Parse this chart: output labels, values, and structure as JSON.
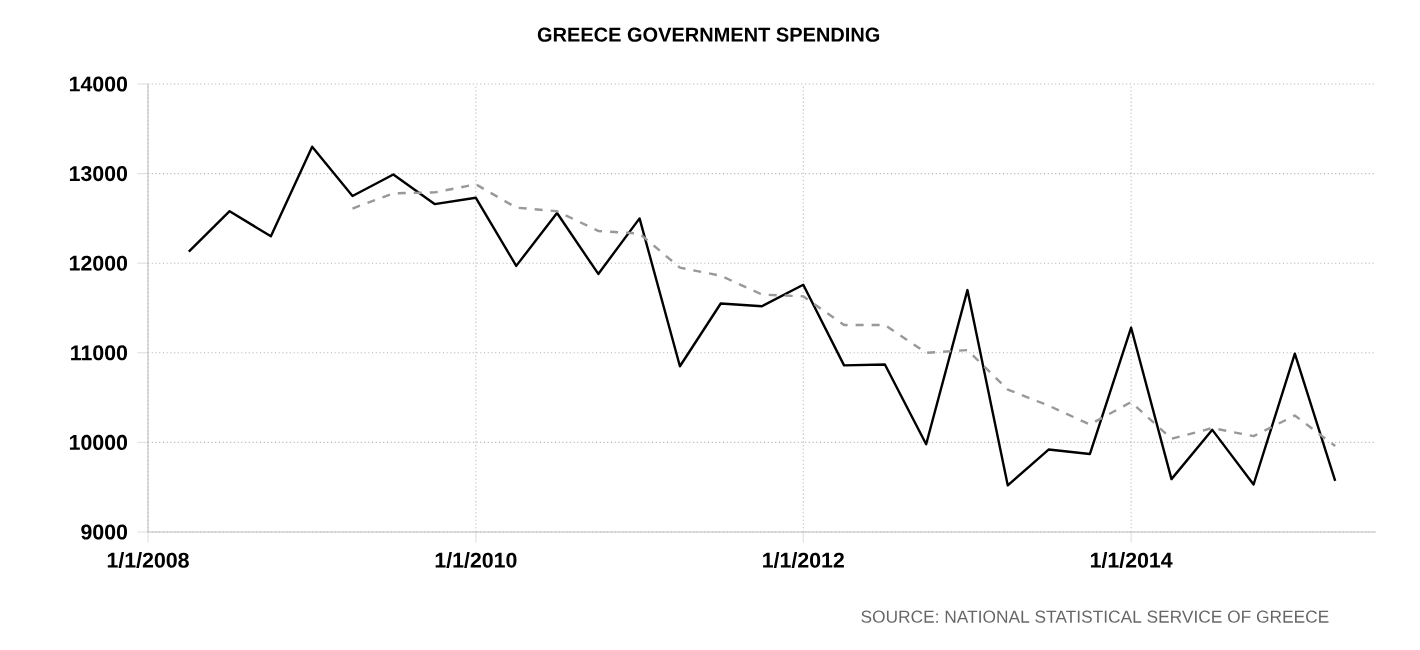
{
  "chart_data": {
    "type": "line",
    "title": "GREECE GOVERNMENT SPENDING",
    "x": [
      "2008-04-01",
      "2008-07-01",
      "2008-10-01",
      "2009-01-01",
      "2009-04-01",
      "2009-07-01",
      "2009-10-01",
      "2010-01-01",
      "2010-04-01",
      "2010-07-01",
      "2010-10-01",
      "2011-01-01",
      "2011-04-01",
      "2011-07-01",
      "2011-10-01",
      "2012-01-01",
      "2012-04-01",
      "2012-07-01",
      "2012-10-01",
      "2013-01-01",
      "2013-04-01",
      "2013-07-01",
      "2013-10-01",
      "2014-01-01",
      "2014-04-01",
      "2014-07-01",
      "2014-10-01",
      "2015-01-01",
      "2015-04-01"
    ],
    "series": [
      {
        "color": "#000000",
        "line_style": "solid",
        "values": [
          12130,
          12580,
          12300,
          13300,
          12750,
          12990,
          12660,
          12730,
          11970,
          12560,
          11880,
          12500,
          10850,
          11550,
          11520,
          11760,
          10860,
          10870,
          9980,
          11700,
          9520,
          9920,
          9870,
          11280,
          9590,
          10140,
          9530,
          10990,
          9570
        ]
      },
      {
        "color": "#999999",
        "line_style": "dashed",
        "values": [
          null,
          null,
          null,
          null,
          12610,
          12780,
          12790,
          12880,
          12620,
          12580,
          12360,
          12330,
          11950,
          11860,
          11650,
          11630,
          11310,
          11310,
          11000,
          11030,
          10590,
          10410,
          10200,
          10450,
          10040,
          10160,
          10070,
          10300,
          9960
        ]
      }
    ],
    "xlim": [
      "2008-01-01",
      "2015-07-01"
    ],
    "xticks": [
      {
        "value": "2008-01-01",
        "label": "1/1/2008"
      },
      {
        "value": "2010-01-01",
        "label": "1/1/2010"
      },
      {
        "value": "2012-01-01",
        "label": "1/1/2012"
      },
      {
        "value": "2014-01-01",
        "label": "1/1/2014"
      }
    ],
    "ylim": [
      9000,
      14000
    ],
    "yticks": [
      9000,
      10000,
      11000,
      12000,
      13000,
      14000
    ],
    "grid": true,
    "marker": "none",
    "annotations": [
      "SOURCE: NATIONAL STATISTICAL SERVICE OF GREECE"
    ]
  }
}
